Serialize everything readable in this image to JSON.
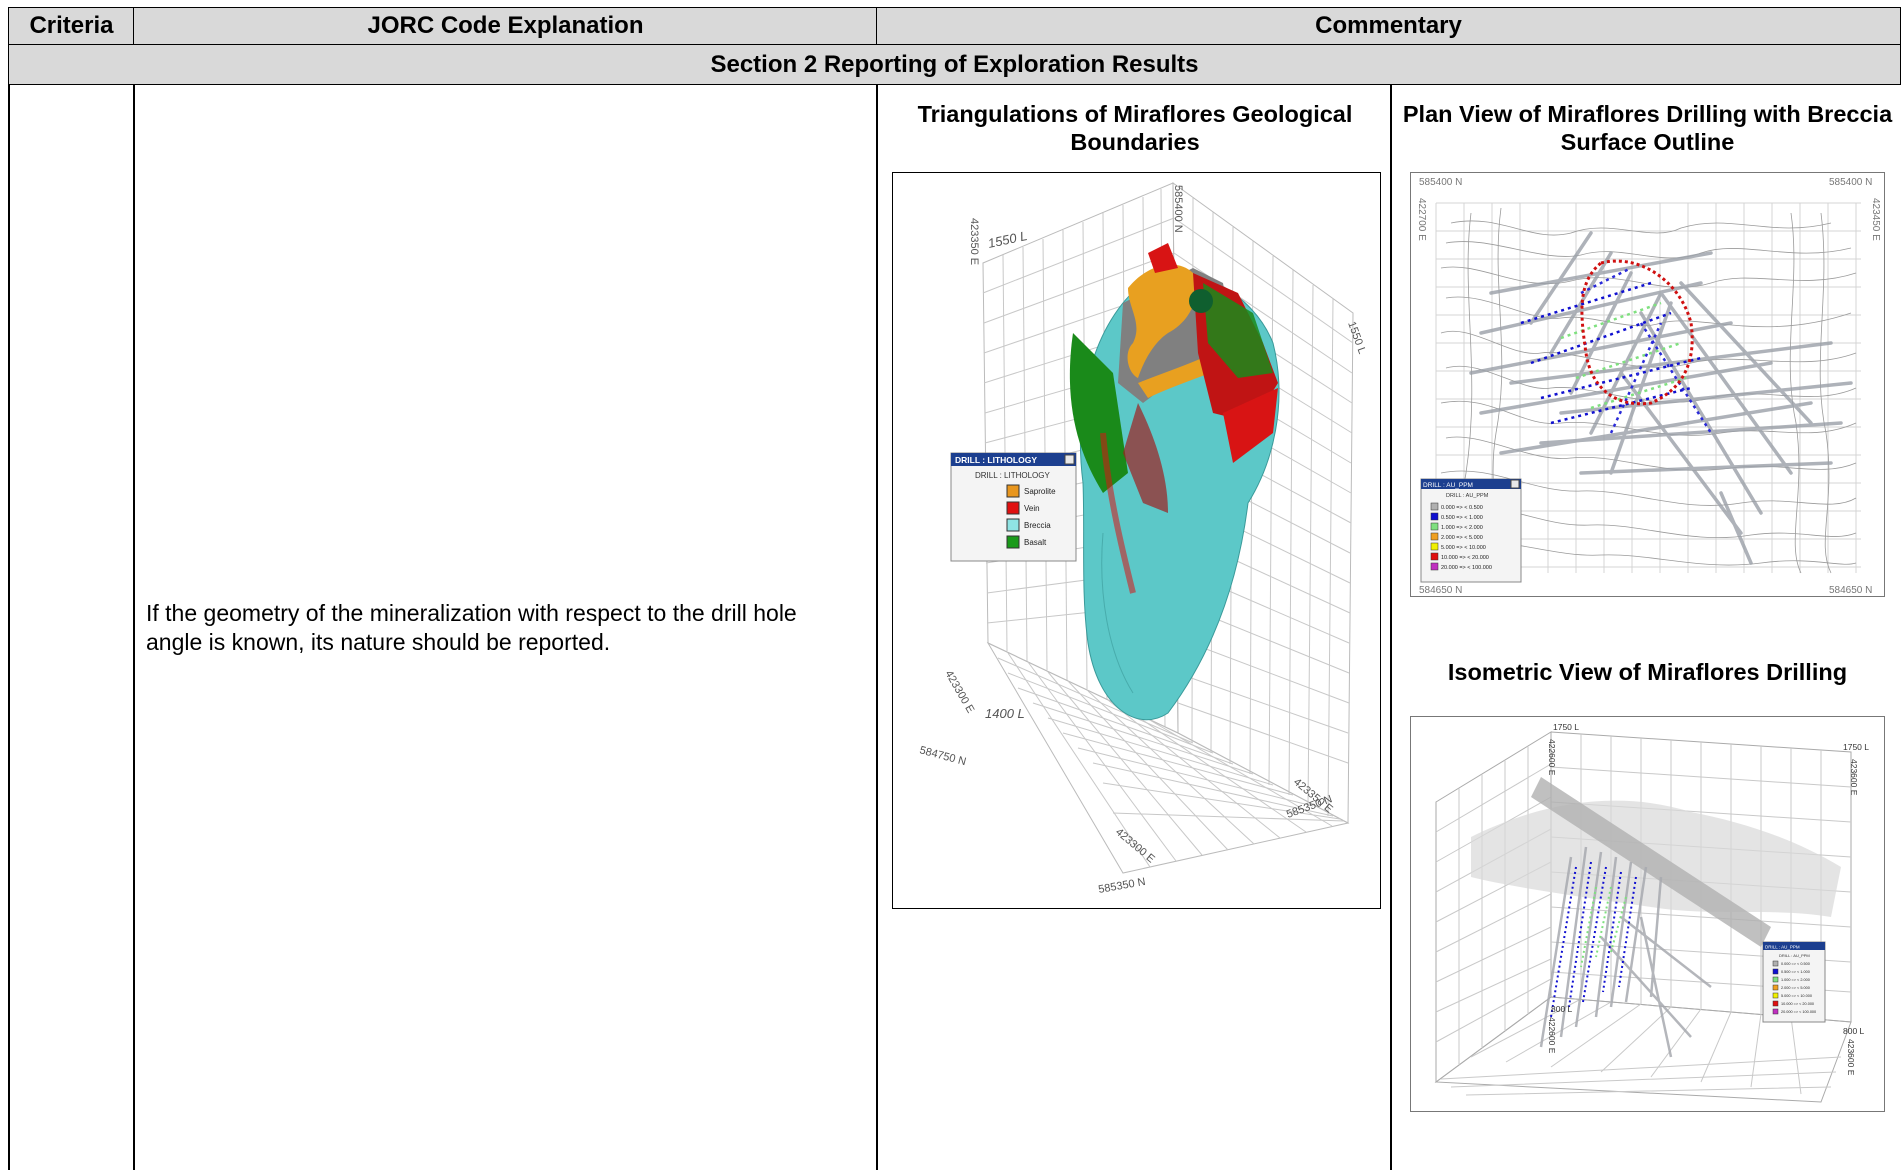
{
  "headers": {
    "criteria": "Criteria",
    "jorc": "JORC Code Explanation",
    "commentary": "Commentary"
  },
  "section_title": "Section 2 Reporting of Exploration Results",
  "jorc_text": "If the geometry of the mineralization with respect to the drill hole angle is known, its nature should be reported.",
  "figures": {
    "triangulations": {
      "title": "Triangulations of Miraflores Geological Boundaries",
      "labels": [
        "423350 E",
        "1550 L",
        "1550 L",
        "585400 N",
        "584750 N",
        "423300 E",
        "1400 L",
        "423350 E",
        "585350 N",
        "423300 E",
        "585350 N"
      ],
      "legend": {
        "window_title": "DRILL : LITHOLOGY",
        "subtitle": "DRILL : LITHOLOGY",
        "items": [
          {
            "label": "Saprolite",
            "color": "#e8961e"
          },
          {
            "label": "Vein",
            "color": "#e01010"
          },
          {
            "label": "Breccia",
            "color": "#8fe3e3"
          },
          {
            "label": "Basalt",
            "color": "#1a9a1a"
          }
        ]
      }
    },
    "plan_view": {
      "title": "Plan View of Miraflores Drilling with Breccia Surface Outline",
      "corner_labels": [
        "585400 N",
        "585400 N",
        "422700 E",
        "423450 E",
        "584650 N",
        "584650 N"
      ],
      "legend": {
        "window_title": "DRILL : AU_PPM",
        "subtitle": "DRILL : AU_PPM",
        "items": [
          {
            "label": "0.000 => < 0.500",
            "color": "#b0b0b0"
          },
          {
            "label": "0.500 => < 1.000",
            "color": "#1010d0"
          },
          {
            "label": "1.000 => < 2.000",
            "color": "#7fe07f"
          },
          {
            "label": "2.000 => < 5.000",
            "color": "#f0a020"
          },
          {
            "label": "5.000 => < 10.000",
            "color": "#f0f000"
          },
          {
            "label": "10.000 => < 20.000",
            "color": "#e01010"
          },
          {
            "label": "20.000 => < 100.000",
            "color": "#c030c0"
          }
        ]
      }
    },
    "isometric": {
      "title": "Isometric View of Miraflores Drilling",
      "labels": [
        "1750 L",
        "1750 L",
        "422600 E",
        "423600 E",
        "800 L",
        "800 L",
        "422600 E",
        "423600 E"
      ],
      "legend": {
        "window_title": "DRILL : AU_PPM",
        "subtitle": "DRILL : AU_PPM"
      }
    }
  },
  "colors": {
    "header_bg": "#d9d9d9",
    "breccia": "#5cc8c8",
    "basalt": "#1a8a1a",
    "vein": "#d81414",
    "saprolite": "#e8a020",
    "outline": "#d01010"
  }
}
